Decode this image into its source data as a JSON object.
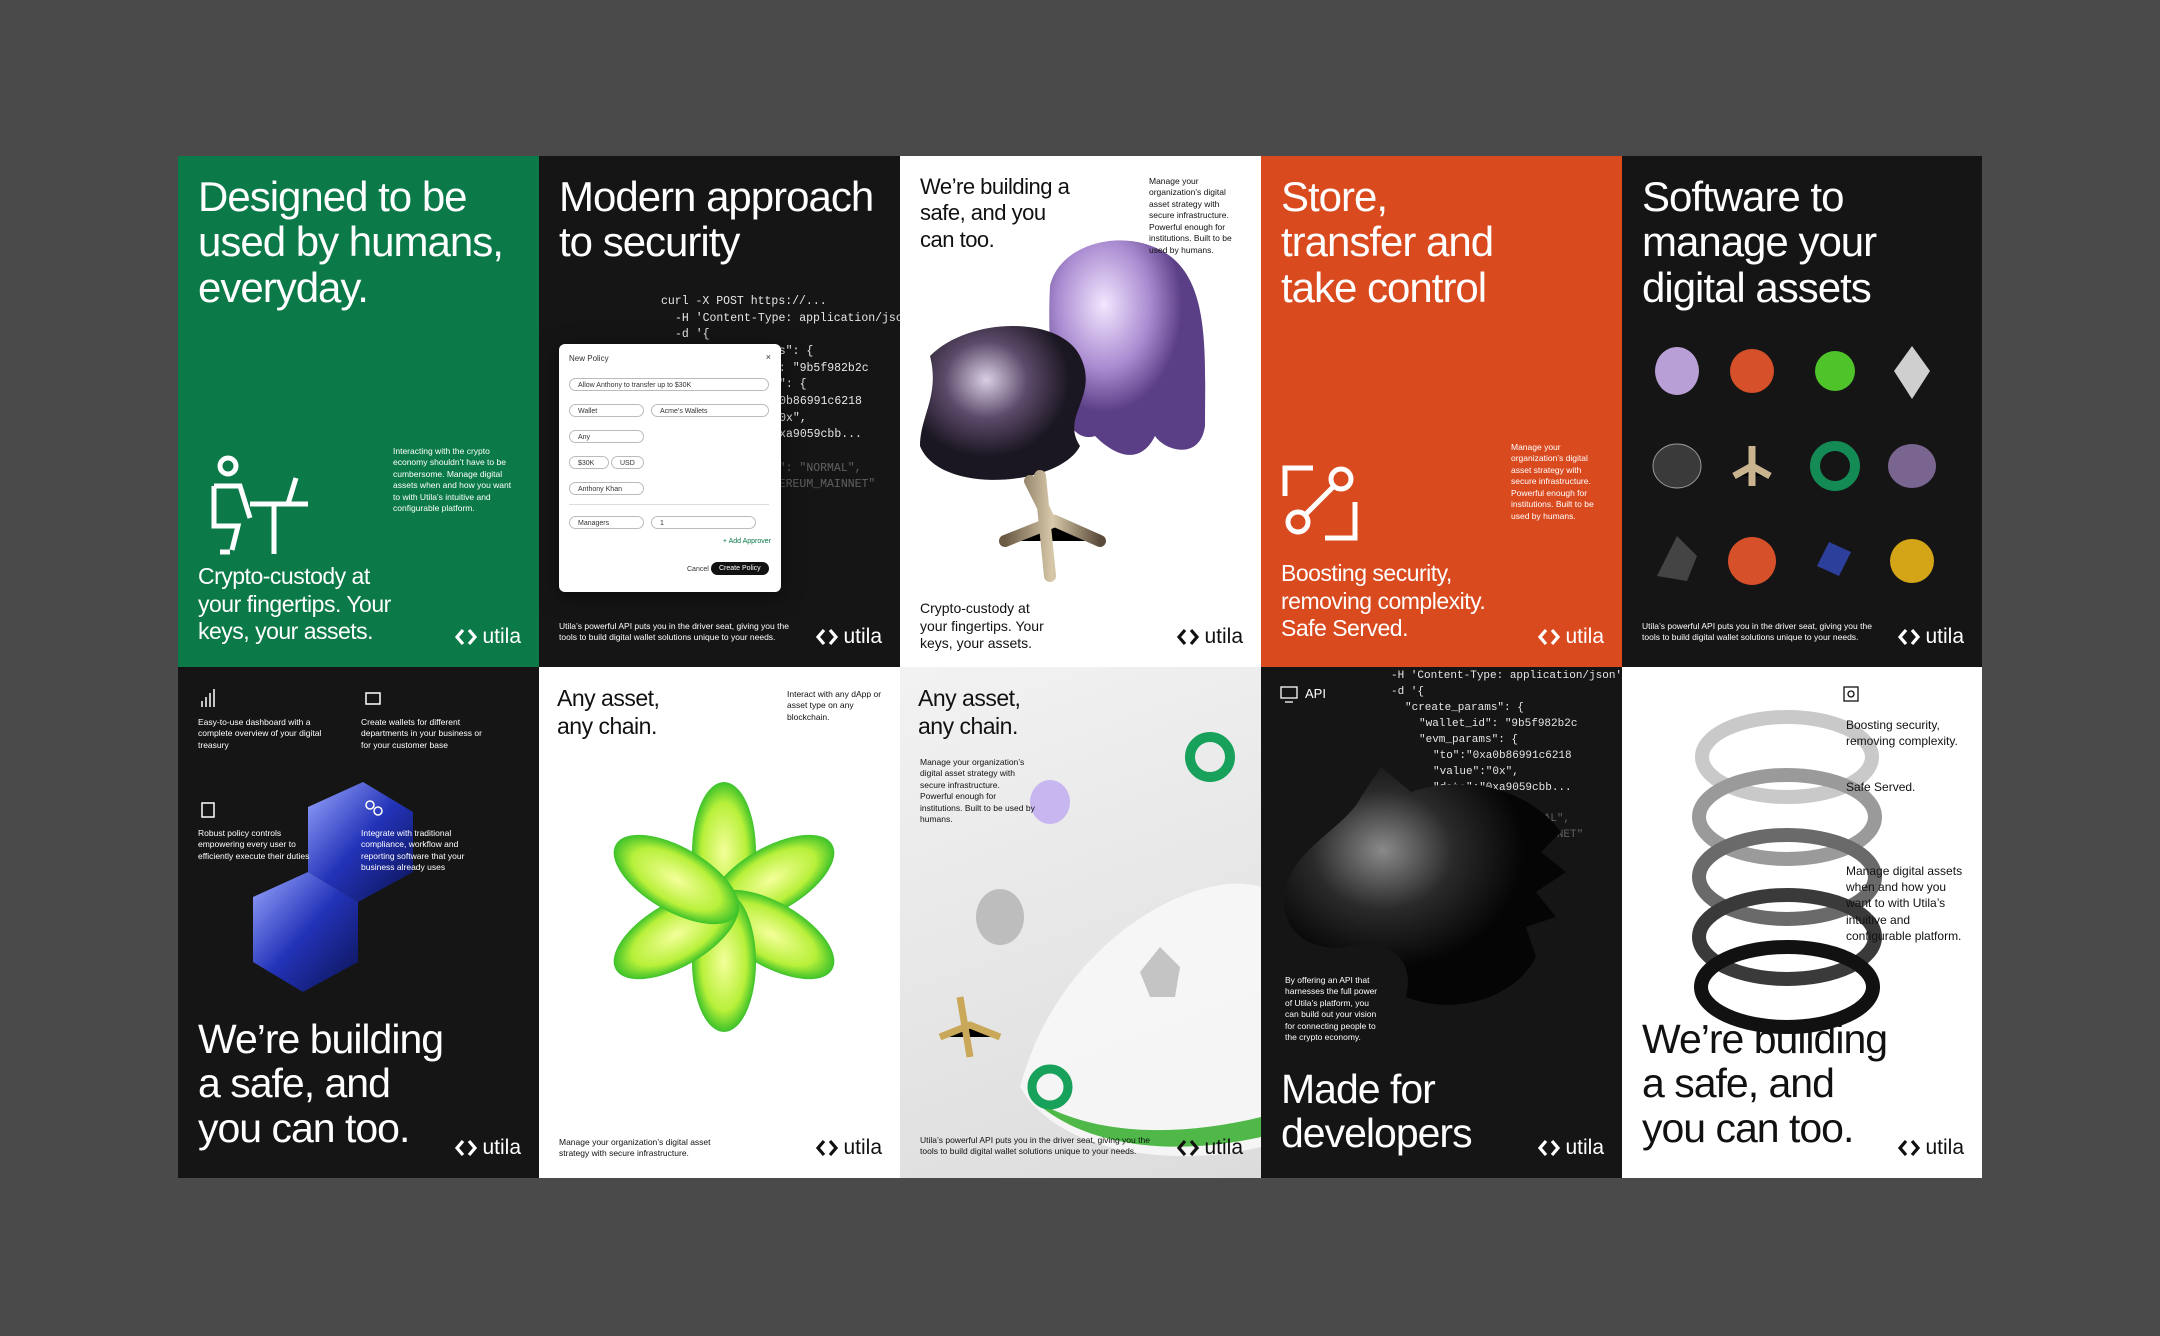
{
  "brand": "utila",
  "posters": [
    {
      "headline": "Designed to be used by humans, everyday.",
      "body": "Interacting with the crypto economy shouldn’t have to be cumbersome. Manage digital assets when and how you want to with Utila’s intuitive and configurable platform.",
      "tagline": "Crypto-custody at your fingertips. Your keys, your assets."
    },
    {
      "headline": "Modern approach to security",
      "code": [
        "curl -X POST https://...",
        "-H 'Content-Type: application/json'",
        "-d '{",
        "\"create_params\": {",
        "\"wallet_id\": \"9b5f982b2c",
        "\"evm_params\": {",
        "\"to\":\"0xa0b86991c6218",
        "\"value\":\"0x\",",
        "\"data\":\"0xa9059cbb...",
        "},",
        "\"priority_fee\": \"NORMAL\",",
        "\"chain\": \"ETHEREUM_MAINNET\""
      ],
      "dialog": {
        "title": "New Policy",
        "rule": "Allow Anthony to transfer up to $30K",
        "source": "Wallet",
        "wallets": "Acme’s Wallets",
        "destination": "Any",
        "amount": "$30K",
        "currency": "USD",
        "initiator": "Anthony Khan",
        "approvers": "Managers",
        "quorum": "1",
        "add": "+ Add Approver",
        "cancel": "Cancel",
        "create": "Create Policy"
      },
      "footer": "Utila’s powerful API puts you in the driver seat, giving you the tools to build digital wallet solutions unique to your needs."
    },
    {
      "headline": "We’re building a safe, and you can too.",
      "body": "Manage your organization’s digital asset strategy with secure infrastructure. Powerful enough for institutions. Built to be used by humans.",
      "tagline": "Crypto-custody at your fingertips. Your keys, your assets."
    },
    {
      "headline": "Store, transfer and take control",
      "body": "Manage your organization’s digital asset strategy with secure infrastructure. Powerful enough for institutions. Built to be used by humans.",
      "tagline": "Boosting security, removing complexity. Safe Served."
    },
    {
      "headline": "Software to manage your digital assets",
      "footer": "Utila’s powerful API puts you in the driver seat, giving you the tools to build digital wallet solutions unique to your needs."
    },
    {
      "features": [
        "Easy-to-use dashboard with a complete overview of your digital treasury",
        "Create wallets for different departments in your business or for your customer base",
        "Robust policy controls empowering every user to efficiently execute their duties",
        "Integrate with traditional compliance, workflow and reporting software that your business already uses"
      ],
      "headline": "We’re building a safe, and you can too."
    },
    {
      "headline": "Any asset, any chain.",
      "body": "Interact with any dApp or asset type on any blockchain.",
      "footer": "Manage your organization’s digital asset strategy with secure infrastructure."
    },
    {
      "headline": "Any asset, any chain.",
      "body": "Manage your organization’s digital asset strategy with secure infrastructure. Powerful enough for institutions. Built to be used by humans.",
      "footer": "Utila’s powerful API puts you in the driver seat, giving you the tools to build digital wallet solutions unique to your needs."
    },
    {
      "label": "API",
      "code": [
        "-H 'Content-Type: application/json'",
        "-d '{",
        "\"create_params\": {",
        "\"wallet_id\": \"9b5f982b2c",
        "\"evm_params\": {",
        "\"to\":\"0xa0b86991c6218",
        "\"value\":\"0x\",",
        "\"data\":\"0xa9059cbb...",
        "},",
        "\"priority_fee\": \"NORMAL\",",
        "\"chain\": \"ETHEREUM_MAINNET\""
      ],
      "body": "By offering an API that harnesses the full power of Utila’s platform, you can build out your vision for connecting people to the crypto economy.",
      "headline": "Made for developers"
    },
    {
      "notes": [
        "Boosting security, removing complexity.",
        "Safe Served.",
        "Manage digital assets when and how you want to with Utila’s intuitive and configurable platform."
      ],
      "headline": "We’re building a safe, and you can too."
    }
  ]
}
